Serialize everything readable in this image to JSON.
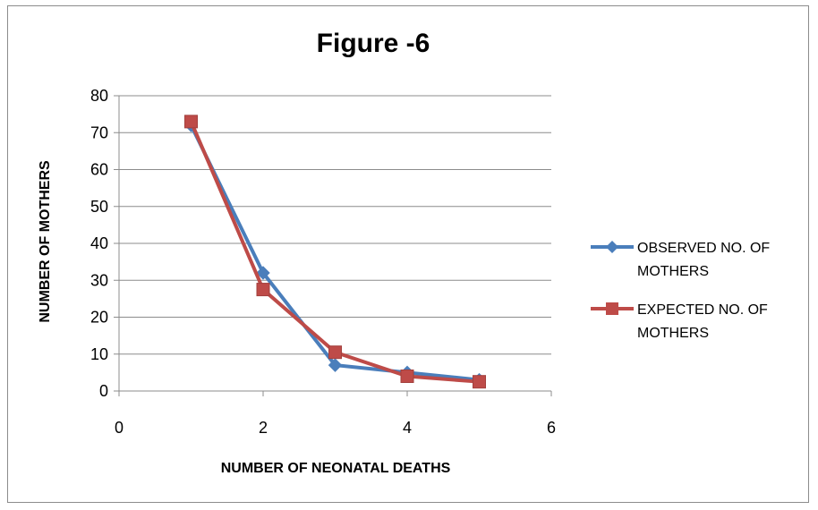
{
  "chart_data": {
    "type": "line",
    "title": "Figure -6",
    "xlabel": "NUMBER OF NEONATAL DEATHS",
    "ylabel": "NUMBER OF MOTHERS",
    "xlim": [
      0,
      6
    ],
    "ylim": [
      0,
      80
    ],
    "xticks": [
      0,
      2,
      4,
      6
    ],
    "yticks": [
      0,
      10,
      20,
      30,
      40,
      50,
      60,
      70,
      80
    ],
    "grid": "horizontal",
    "legend_position": "right",
    "series": [
      {
        "name_lines": [
          "OBSERVED NO. OF",
          "MOTHERS"
        ],
        "color": "#4a7ebb",
        "marker": "diamond",
        "x": [
          1,
          2,
          3,
          4,
          5
        ],
        "y": [
          72,
          32,
          7,
          5,
          3
        ]
      },
      {
        "name_lines": [
          "EXPECTED NO. OF",
          "MOTHERS"
        ],
        "color": "#be4b48",
        "marker": "square",
        "x": [
          1,
          2,
          3,
          4,
          5
        ],
        "y": [
          73,
          27.5,
          10.5,
          4,
          2.5
        ]
      }
    ]
  }
}
